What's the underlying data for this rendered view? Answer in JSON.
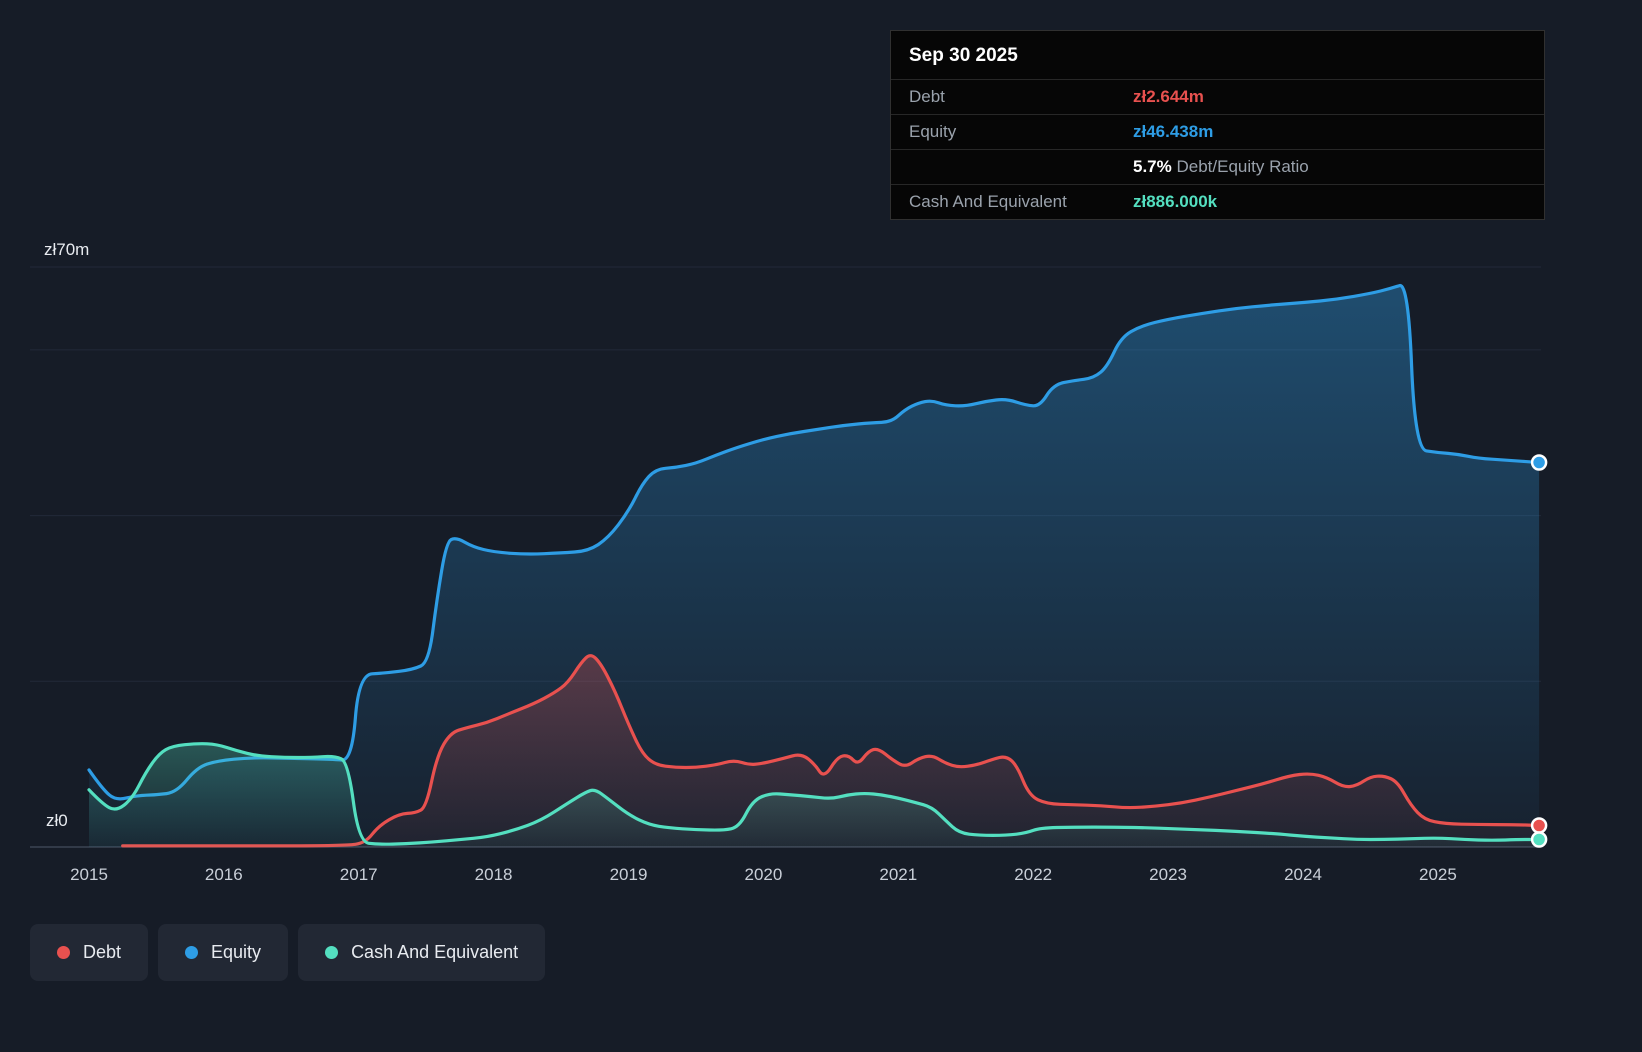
{
  "colors": {
    "background": "#161c27",
    "debt": "#e8514f",
    "equity": "#2e9de5",
    "cash": "#54dfc0",
    "grid": "#222938",
    "axis": "#3c4454",
    "tick_text": "#c9cfd8",
    "text_primary": "#e8ebf0",
    "text_muted": "#9aa2ac"
  },
  "axes": {
    "y_top_label": "zł70m",
    "y_zero_label": "zł0"
  },
  "tooltip": {
    "date": "Sep 30 2025",
    "rows": [
      {
        "label": "Debt",
        "value": "zł2.644m",
        "color": "debt"
      },
      {
        "label": "Equity",
        "value": "zł46.438m",
        "color": "equity"
      },
      {
        "label": "Cash And Equivalent",
        "value": "zł886.000k",
        "color": "cash"
      }
    ],
    "ratio": {
      "label": "",
      "value": "5.7%",
      "suffix": " Debt/Equity Ratio"
    }
  },
  "legend": [
    {
      "label": "Debt",
      "color": "debt"
    },
    {
      "label": "Equity",
      "color": "equity"
    },
    {
      "label": "Cash And Equivalent",
      "color": "cash"
    }
  ],
  "chart_data": {
    "type": "area",
    "title": "Debt to Equity History",
    "x_domain": [
      2014.563,
      2025.764
    ],
    "y_domain": [
      0,
      70
    ],
    "y_unit": "zł millions",
    "x_ticks": [
      2015,
      2016,
      2017,
      2018,
      2019,
      2020,
      2021,
      2022,
      2023,
      2024,
      2025
    ],
    "gridlines_m": [
      20,
      40,
      60,
      70
    ],
    "legend_position": "bottom-left",
    "series": [
      {
        "key": "equity",
        "name": "Equity",
        "points": [
          [
            2015.0,
            9.3
          ],
          [
            2015.1,
            7.0
          ],
          [
            2015.2,
            5.6
          ],
          [
            2015.35,
            6.2
          ],
          [
            2015.5,
            6.3
          ],
          [
            2015.65,
            6.6
          ],
          [
            2015.8,
            9.6
          ],
          [
            2015.95,
            10.4
          ],
          [
            2016.2,
            10.8
          ],
          [
            2016.5,
            10.7
          ],
          [
            2016.8,
            10.6
          ],
          [
            2016.95,
            10.4
          ],
          [
            2017.0,
            20.8
          ],
          [
            2017.2,
            21.0
          ],
          [
            2017.4,
            21.4
          ],
          [
            2017.52,
            22.3
          ],
          [
            2017.58,
            30.0
          ],
          [
            2017.65,
            36.8
          ],
          [
            2017.72,
            37.4
          ],
          [
            2017.85,
            36.2
          ],
          [
            2018.0,
            35.6
          ],
          [
            2018.25,
            35.3
          ],
          [
            2018.5,
            35.5
          ],
          [
            2018.7,
            35.7
          ],
          [
            2018.85,
            37.3
          ],
          [
            2019.0,
            40.5
          ],
          [
            2019.1,
            43.8
          ],
          [
            2019.2,
            45.6
          ],
          [
            2019.35,
            45.8
          ],
          [
            2019.5,
            46.3
          ],
          [
            2019.65,
            47.3
          ],
          [
            2019.8,
            48.2
          ],
          [
            2020.0,
            49.2
          ],
          [
            2020.2,
            49.9
          ],
          [
            2020.4,
            50.4
          ],
          [
            2020.6,
            50.9
          ],
          [
            2020.8,
            51.2
          ],
          [
            2020.95,
            51.3
          ],
          [
            2021.05,
            52.8
          ],
          [
            2021.15,
            53.6
          ],
          [
            2021.25,
            53.9
          ],
          [
            2021.35,
            53.3
          ],
          [
            2021.5,
            53.2
          ],
          [
            2021.65,
            53.8
          ],
          [
            2021.8,
            54.1
          ],
          [
            2021.95,
            53.3
          ],
          [
            2022.05,
            53.2
          ],
          [
            2022.15,
            55.8
          ],
          [
            2022.3,
            56.3
          ],
          [
            2022.45,
            56.6
          ],
          [
            2022.55,
            58.0
          ],
          [
            2022.65,
            61.5
          ],
          [
            2022.8,
            62.9
          ],
          [
            2023.0,
            63.7
          ],
          [
            2023.25,
            64.4
          ],
          [
            2023.5,
            65.0
          ],
          [
            2023.75,
            65.4
          ],
          [
            2024.0,
            65.7
          ],
          [
            2024.25,
            66.1
          ],
          [
            2024.5,
            66.8
          ],
          [
            2024.65,
            67.4
          ],
          [
            2024.78,
            68.1
          ],
          [
            2024.83,
            48.0
          ],
          [
            2025.0,
            47.6
          ],
          [
            2025.15,
            47.4
          ],
          [
            2025.3,
            46.9
          ],
          [
            2025.5,
            46.7
          ],
          [
            2025.75,
            46.4
          ]
        ]
      },
      {
        "key": "debt",
        "name": "Debt",
        "points": [
          [
            2015.25,
            0.15
          ],
          [
            2016.0,
            0.15
          ],
          [
            2016.9,
            0.15
          ],
          [
            2017.05,
            0.5
          ],
          [
            2017.15,
            2.6
          ],
          [
            2017.3,
            4.0
          ],
          [
            2017.42,
            4.1
          ],
          [
            2017.5,
            4.8
          ],
          [
            2017.58,
            11.0
          ],
          [
            2017.68,
            13.8
          ],
          [
            2017.8,
            14.4
          ],
          [
            2017.95,
            15.0
          ],
          [
            2018.1,
            16.0
          ],
          [
            2018.3,
            17.3
          ],
          [
            2018.45,
            18.6
          ],
          [
            2018.55,
            19.8
          ],
          [
            2018.65,
            22.3
          ],
          [
            2018.72,
            23.4
          ],
          [
            2018.8,
            22.0
          ],
          [
            2018.9,
            18.8
          ],
          [
            2019.0,
            14.8
          ],
          [
            2019.1,
            11.3
          ],
          [
            2019.2,
            9.9
          ],
          [
            2019.35,
            9.6
          ],
          [
            2019.5,
            9.6
          ],
          [
            2019.65,
            9.9
          ],
          [
            2019.78,
            10.5
          ],
          [
            2019.9,
            9.9
          ],
          [
            2020.0,
            10.1
          ],
          [
            2020.15,
            10.7
          ],
          [
            2020.28,
            11.3
          ],
          [
            2020.38,
            10.0
          ],
          [
            2020.45,
            8.3
          ],
          [
            2020.55,
            10.9
          ],
          [
            2020.63,
            11.1
          ],
          [
            2020.7,
            9.9
          ],
          [
            2020.78,
            11.6
          ],
          [
            2020.85,
            11.9
          ],
          [
            2020.95,
            10.6
          ],
          [
            2021.05,
            9.6
          ],
          [
            2021.15,
            10.7
          ],
          [
            2021.25,
            11.1
          ],
          [
            2021.35,
            10.1
          ],
          [
            2021.45,
            9.6
          ],
          [
            2021.58,
            9.9
          ],
          [
            2021.7,
            10.6
          ],
          [
            2021.8,
            11.0
          ],
          [
            2021.88,
            9.8
          ],
          [
            2021.97,
            6.2
          ],
          [
            2022.1,
            5.2
          ],
          [
            2022.3,
            5.1
          ],
          [
            2022.5,
            5.0
          ],
          [
            2022.7,
            4.7
          ],
          [
            2022.9,
            4.9
          ],
          [
            2023.1,
            5.3
          ],
          [
            2023.3,
            6.0
          ],
          [
            2023.5,
            6.8
          ],
          [
            2023.7,
            7.6
          ],
          [
            2023.9,
            8.6
          ],
          [
            2024.05,
            8.9
          ],
          [
            2024.18,
            8.4
          ],
          [
            2024.3,
            7.2
          ],
          [
            2024.4,
            7.4
          ],
          [
            2024.5,
            8.5
          ],
          [
            2024.6,
            8.6
          ],
          [
            2024.7,
            7.9
          ],
          [
            2024.8,
            5.0
          ],
          [
            2024.9,
            3.3
          ],
          [
            2025.05,
            2.8
          ],
          [
            2025.3,
            2.7
          ],
          [
            2025.55,
            2.7
          ],
          [
            2025.75,
            2.6
          ]
        ]
      },
      {
        "key": "cash",
        "name": "Cash And Equivalent",
        "points": [
          [
            2015.0,
            6.9
          ],
          [
            2015.1,
            5.2
          ],
          [
            2015.2,
            4.3
          ],
          [
            2015.32,
            5.8
          ],
          [
            2015.42,
            9.0
          ],
          [
            2015.52,
            11.3
          ],
          [
            2015.62,
            12.2
          ],
          [
            2015.8,
            12.5
          ],
          [
            2015.95,
            12.4
          ],
          [
            2016.1,
            11.6
          ],
          [
            2016.25,
            11.0
          ],
          [
            2016.45,
            10.8
          ],
          [
            2016.65,
            10.8
          ],
          [
            2016.82,
            11.0
          ],
          [
            2016.92,
            10.3
          ],
          [
            2017.0,
            0.6
          ],
          [
            2017.15,
            0.3
          ],
          [
            2017.35,
            0.4
          ],
          [
            2017.55,
            0.6
          ],
          [
            2017.75,
            0.9
          ],
          [
            2017.95,
            1.2
          ],
          [
            2018.15,
            2.0
          ],
          [
            2018.35,
            3.2
          ],
          [
            2018.55,
            5.3
          ],
          [
            2018.68,
            6.6
          ],
          [
            2018.75,
            7.0
          ],
          [
            2018.85,
            5.8
          ],
          [
            2019.0,
            3.9
          ],
          [
            2019.15,
            2.7
          ],
          [
            2019.3,
            2.3
          ],
          [
            2019.5,
            2.1
          ],
          [
            2019.7,
            2.0
          ],
          [
            2019.82,
            2.4
          ],
          [
            2019.92,
            5.6
          ],
          [
            2020.05,
            6.5
          ],
          [
            2020.2,
            6.3
          ],
          [
            2020.35,
            6.1
          ],
          [
            2020.5,
            5.8
          ],
          [
            2020.62,
            6.3
          ],
          [
            2020.75,
            6.5
          ],
          [
            2020.88,
            6.3
          ],
          [
            2021.0,
            5.9
          ],
          [
            2021.12,
            5.4
          ],
          [
            2021.25,
            4.8
          ],
          [
            2021.35,
            3.2
          ],
          [
            2021.45,
            1.7
          ],
          [
            2021.6,
            1.4
          ],
          [
            2021.8,
            1.4
          ],
          [
            2021.95,
            1.7
          ],
          [
            2022.05,
            2.3
          ],
          [
            2022.3,
            2.4
          ],
          [
            2022.6,
            2.4
          ],
          [
            2022.9,
            2.3
          ],
          [
            2023.2,
            2.1
          ],
          [
            2023.5,
            1.9
          ],
          [
            2023.8,
            1.6
          ],
          [
            2024.0,
            1.3
          ],
          [
            2024.2,
            1.1
          ],
          [
            2024.4,
            0.9
          ],
          [
            2024.6,
            0.9
          ],
          [
            2024.8,
            1.0
          ],
          [
            2025.0,
            1.1
          ],
          [
            2025.2,
            0.9
          ],
          [
            2025.4,
            0.8
          ],
          [
            2025.6,
            0.9
          ],
          [
            2025.75,
            0.9
          ]
        ]
      }
    ]
  }
}
